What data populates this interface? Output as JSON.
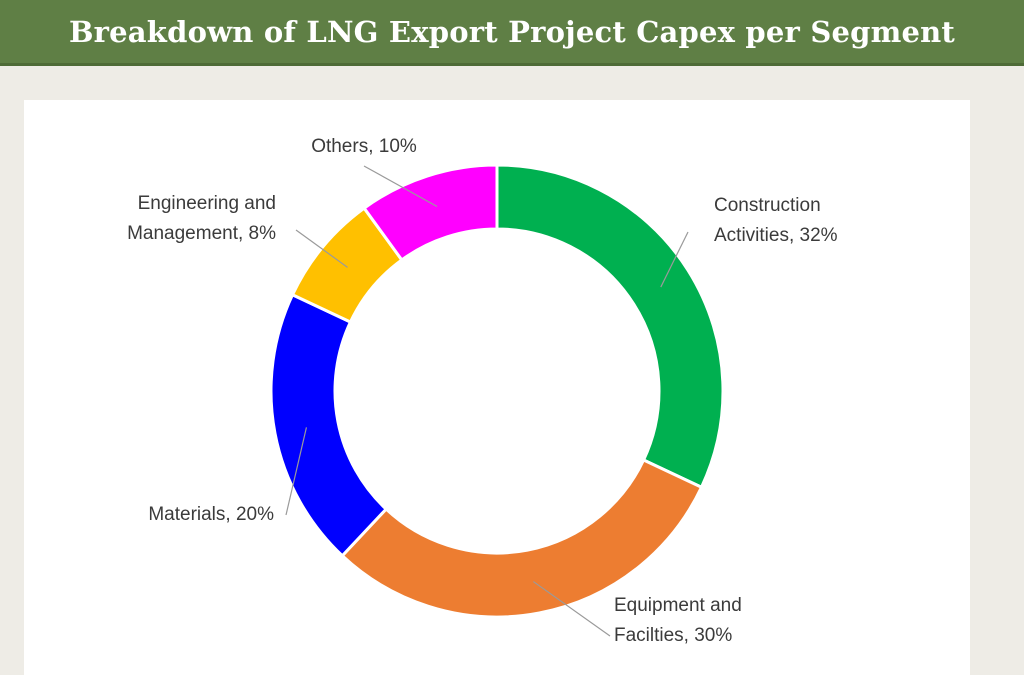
{
  "title": "Breakdown of LNG Export Project Capex per Segment",
  "chart_data": {
    "type": "pie",
    "donut": true,
    "title": "Breakdown of LNG Export Project Capex per Segment",
    "categories": [
      "Construction Activities",
      "Equipment and Facilties",
      "Materials",
      "Engineering and Management",
      "Others"
    ],
    "values": [
      32,
      30,
      20,
      8,
      10
    ],
    "unit": "%",
    "colors": [
      "#00b050",
      "#ed7d31",
      "#0000ff",
      "#ffc000",
      "#ff00ff"
    ],
    "legend": "none",
    "labels": [
      [
        "Construction",
        "Activities, 32%"
      ],
      [
        "Equipment and",
        "Facilties, 30%"
      ],
      [
        "Materials, 20%"
      ],
      [
        "Engineering and",
        "Management, 8%"
      ],
      [
        "Others, 10%"
      ]
    ]
  }
}
